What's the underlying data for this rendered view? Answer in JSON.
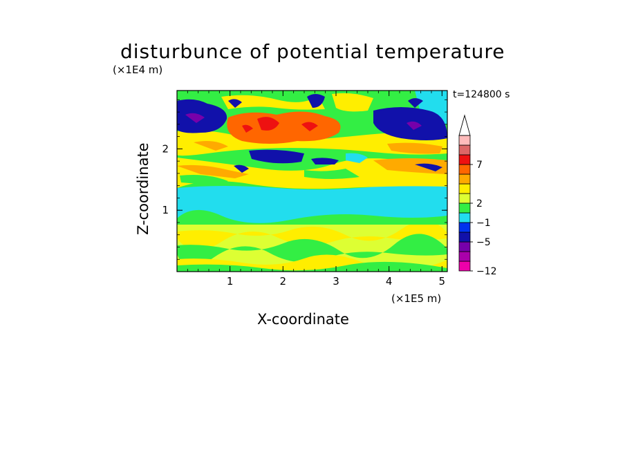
{
  "chart_data": {
    "type": "heatmap",
    "title": "disturbunce of potential temperature",
    "xlabel": "X-coordinate",
    "ylabel": "Z-coordinate",
    "x_unit": "(×1E5 m)",
    "y_unit": "(×1E4 m)",
    "time_label": "t=124800 s",
    "xlim": [
      0,
      5.1
    ],
    "ylim": [
      0,
      2.95
    ],
    "xticks": [
      "1",
      "2",
      "3",
      "4",
      "5"
    ],
    "yticks": [
      "1",
      "2"
    ],
    "colorbar": {
      "ticks": [
        "7",
        "2",
        "−1",
        "−5",
        "−12"
      ],
      "colors": [
        "#ee00aa",
        "#aa00aa",
        "#7700aa",
        "#1111aa",
        "#0033ee",
        "#22ddee",
        "#33ee44",
        "#ddff33",
        "#ffee00",
        "#ffaa00",
        "#ff6600",
        "#ee1111",
        "#dd6666",
        "#ffbbbb"
      ]
    },
    "bands": [
      {
        "z0": 0.0,
        "z1": 0.75,
        "level": "yellow/green (≈0 to 2)"
      },
      {
        "z0": 0.75,
        "z1": 1.0,
        "level": "green (≈0)"
      },
      {
        "z0": 1.0,
        "z1": 1.45,
        "level": "cyan (≈−1)"
      },
      {
        "z0": 1.45,
        "z1": 2.35,
        "level": "mixed green/yellow/blue"
      },
      {
        "z0": 2.2,
        "z1": 2.7,
        "level": "orange/red maximum near x≈1.5–2.8"
      },
      {
        "z0": 2.2,
        "z1": 2.8,
        "level": "blue minima near x≈0–1 and x≈3.8–5"
      }
    ]
  }
}
